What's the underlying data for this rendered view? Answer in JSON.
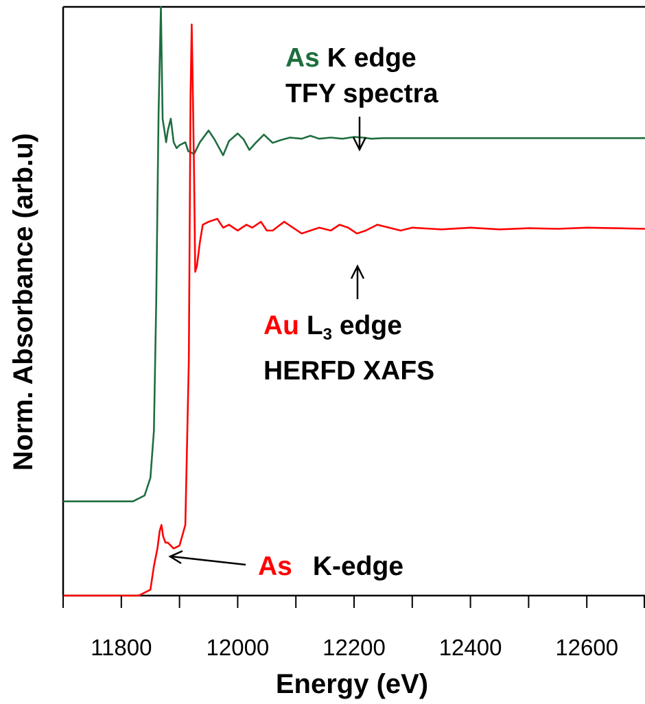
{
  "chart_data": {
    "type": "line",
    "title": "",
    "xlabel": "Energy (eV)",
    "ylabel": "Norm. Absorbance (arb.u)",
    "xlim": [
      11700,
      12700
    ],
    "ylim": [
      0,
      1
    ],
    "x_ticks": [
      11800,
      12000,
      12200,
      12400,
      12600
    ],
    "x_minor_ticks": [
      11700,
      11900,
      12100,
      12300,
      12500,
      12700
    ],
    "grid": false,
    "legend": "none",
    "series": [
      {
        "color": "#1e6e3e",
        "x": [
          11700,
          11820,
          11840,
          11850,
          11856,
          11860,
          11864,
          11868,
          11871,
          11874,
          11877,
          11880,
          11885,
          11890,
          11895,
          11900,
          11910,
          11915,
          11925,
          11935,
          11950,
          11960,
          11975,
          11985,
          12000,
          12010,
          12020,
          12030,
          12045,
          12060,
          12075,
          12090,
          12110,
          12125,
          12140,
          12160,
          12180,
          12200,
          12215,
          12230,
          12250,
          12300,
          12400,
          12500,
          12600,
          12700
        ],
        "y": [
          0.16,
          0.16,
          0.17,
          0.2,
          0.28,
          0.5,
          0.82,
          1.0,
          0.81,
          0.79,
          0.77,
          0.79,
          0.81,
          0.77,
          0.76,
          0.765,
          0.77,
          0.755,
          0.75,
          0.77,
          0.79,
          0.775,
          0.748,
          0.772,
          0.785,
          0.775,
          0.757,
          0.768,
          0.783,
          0.769,
          0.774,
          0.778,
          0.776,
          0.781,
          0.776,
          0.778,
          0.776,
          0.779,
          0.778,
          0.776,
          0.777,
          0.777,
          0.777,
          0.777,
          0.777,
          0.777
        ]
      },
      {
        "color": "#ff0000",
        "x": [
          11700,
          11830,
          11850,
          11856,
          11862,
          11866,
          11869,
          11872,
          11876,
          11880,
          11890,
          11900,
          11910,
          11916,
          11919,
          11921,
          11923,
          11925,
          11927,
          11930,
          11935,
          11940,
          11950,
          11965,
          11975,
          11985,
          12000,
          12015,
          12025,
          12040,
          12050,
          12060,
          12080,
          12095,
          12110,
          12125,
          12140,
          12160,
          12175,
          12190,
          12205,
          12220,
          12240,
          12260,
          12280,
          12300,
          12350,
          12400,
          12450,
          12500,
          12550,
          12600,
          12650,
          12700
        ],
        "y": [
          0.0,
          0.0,
          0.01,
          0.05,
          0.08,
          0.11,
          0.12,
          0.1,
          0.09,
          0.09,
          0.08,
          0.085,
          0.12,
          0.4,
          0.85,
          0.97,
          0.85,
          0.72,
          0.55,
          0.56,
          0.6,
          0.63,
          0.635,
          0.64,
          0.625,
          0.63,
          0.62,
          0.63,
          0.625,
          0.635,
          0.62,
          0.62,
          0.635,
          0.625,
          0.615,
          0.62,
          0.625,
          0.62,
          0.63,
          0.625,
          0.615,
          0.62,
          0.63,
          0.625,
          0.62,
          0.625,
          0.622,
          0.625,
          0.622,
          0.624,
          0.623,
          0.625,
          0.624,
          0.623
        ]
      }
    ],
    "annotations": {
      "as_label": {
        "prefix": "As",
        "prefix_color": "#1e6e3e",
        "rest": " K edge"
      },
      "tfy_label": "TFY spectra",
      "au_label": {
        "prefix": "Au",
        "prefix_color": "#ff0000",
        "main": " L",
        "sub": "3",
        "rest": " edge"
      },
      "herfd_label": "HERFD XAFS",
      "ask_label": {
        "prefix": "As",
        "prefix_color": "#ff0000",
        "rest": "K-edge"
      }
    }
  }
}
